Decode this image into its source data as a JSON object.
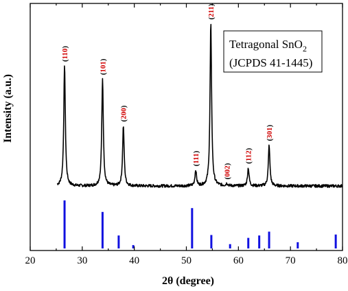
{
  "chart_data": {
    "type": "line",
    "xlabel": "2θ (degree)",
    "ylabel": "Intensity (a.u.)",
    "xlim": [
      20,
      80
    ],
    "x_ticks": [
      "20",
      "30",
      "40",
      "50",
      "60",
      "70",
      "80"
    ],
    "legend": {
      "line1_main": "Tetragonal SnO",
      "line1_sub": "2",
      "line2": "(JCPDS 41-1445)",
      "position": "top-right"
    },
    "series": [
      {
        "baseline": 0.0,
        "noise": 0.012,
        "peaks": [
          {
            "x": 26.6,
            "height": 1.0,
            "label": "110"
          },
          {
            "x": 33.9,
            "height": 0.89,
            "label": "101"
          },
          {
            "x": 37.9,
            "height": 0.5,
            "label": "200"
          },
          {
            "x": 51.8,
            "height": 0.13,
            "label": "111"
          },
          {
            "x": 54.7,
            "height": 1.35,
            "label": "211"
          },
          {
            "x": 57.8,
            "height": 0.02,
            "label": "002"
          },
          {
            "x": 61.9,
            "height": 0.15,
            "label": "112"
          },
          {
            "x": 65.9,
            "height": 0.34,
            "label": "301"
          }
        ]
      }
    ],
    "reference_lines": {
      "x": [
        26.6,
        33.9,
        37.0,
        39.8,
        51.1,
        54.8,
        58.4,
        61.9,
        64.0,
        65.9,
        71.4,
        78.7
      ],
      "intensity": [
        1.0,
        0.76,
        0.27,
        0.07,
        0.84,
        0.28,
        0.09,
        0.22,
        0.27,
        0.35,
        0.13,
        0.29
      ]
    },
    "colors": {
      "pattern": "#000000",
      "reference": "#1010e0",
      "peak_labels": "#d10000"
    }
  }
}
